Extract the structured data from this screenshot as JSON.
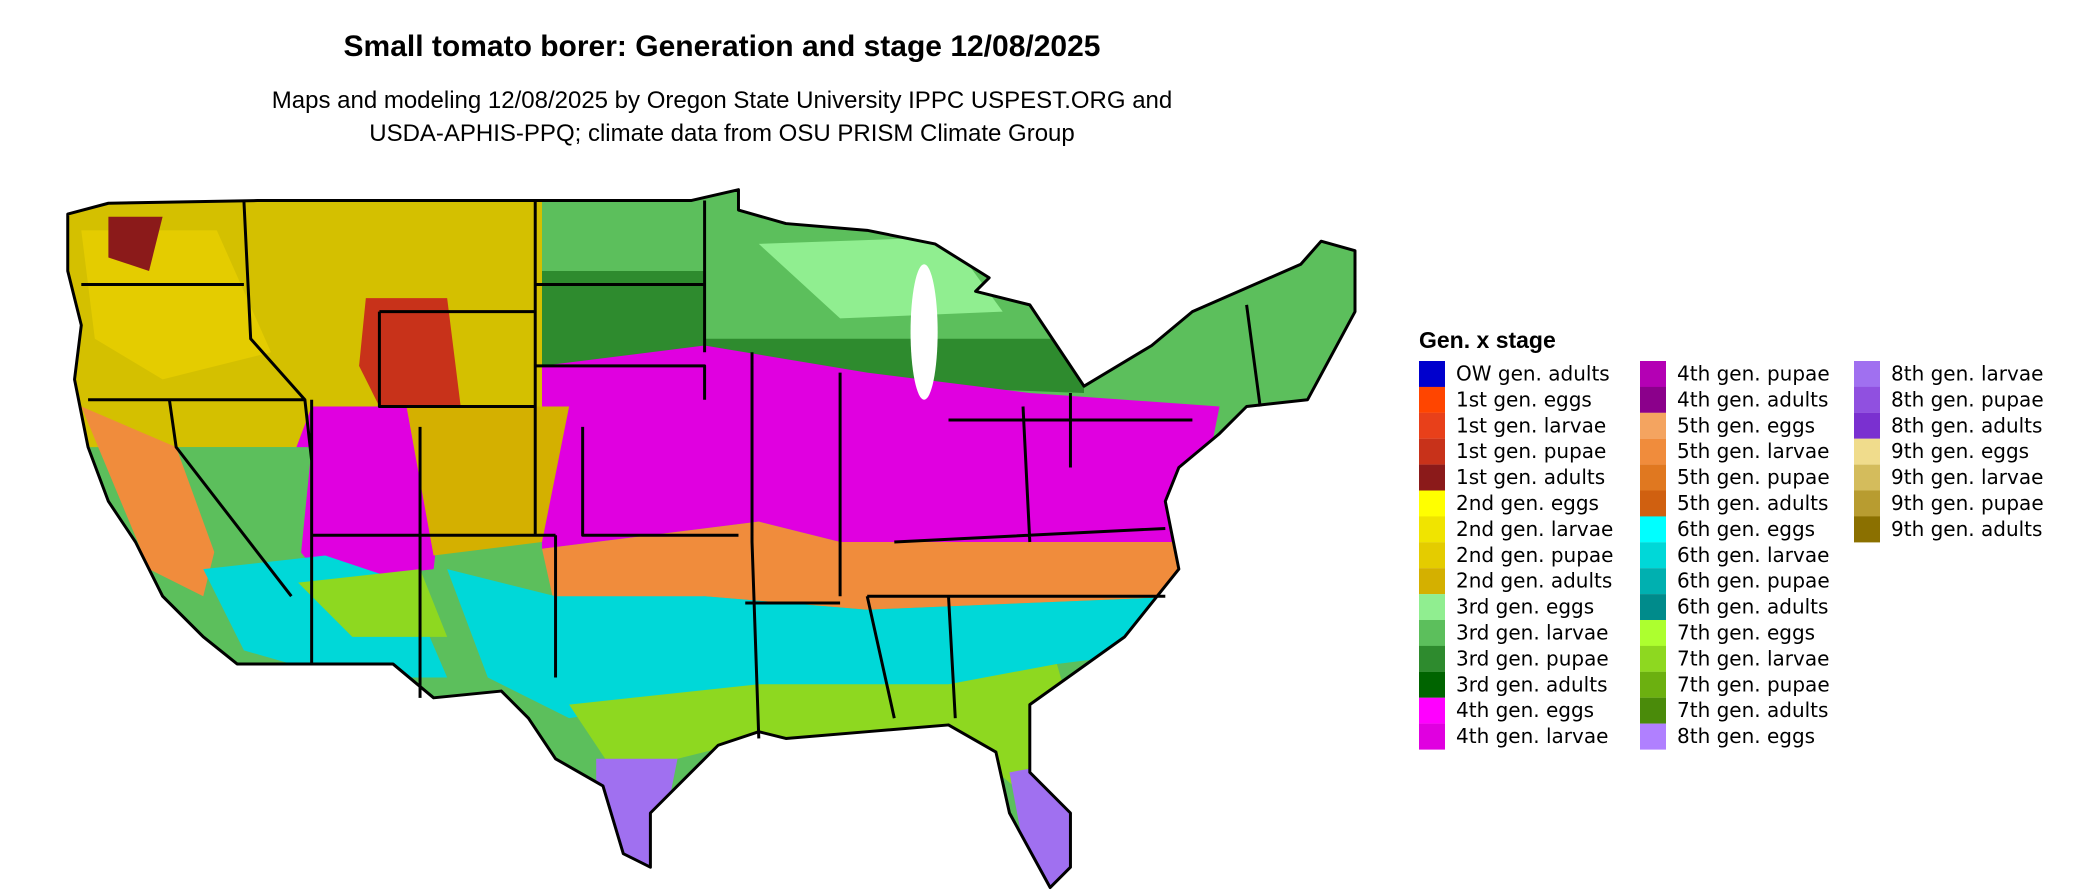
{
  "title": "Small tomato borer: Generation and stage 12/08/2025",
  "subtitle": [
    "Maps and modeling 12/08/2025 by Oregon State University IPPC USPEST.ORG and",
    "USDA-APHIS-PPQ; climate data from OSU PRISM Climate Group"
  ],
  "legend": {
    "title": "Gen. x stage",
    "items": [
      {
        "label": "OW gen. adults",
        "color": "#0000cd"
      },
      {
        "label": "1st gen. eggs",
        "color": "#ff4500"
      },
      {
        "label": "1st gen. larvae",
        "color": "#e8401a"
      },
      {
        "label": "1st gen. pupae",
        "color": "#c8321a"
      },
      {
        "label": "1st gen. adults",
        "color": "#8b1a1a"
      },
      {
        "label": "2nd gen. eggs",
        "color": "#ffff00"
      },
      {
        "label": "2nd gen. larvae",
        "color": "#f0e400"
      },
      {
        "label": "2nd gen. pupae",
        "color": "#e4cc00"
      },
      {
        "label": "2nd gen. adults",
        "color": "#d4b000"
      },
      {
        "label": "3rd gen. eggs",
        "color": "#90ee90"
      },
      {
        "label": "3rd gen. larvae",
        "color": "#5cbf5c"
      },
      {
        "label": "3rd gen. pupae",
        "color": "#2e8b2e"
      },
      {
        "label": "3rd gen. adults",
        "color": "#006400"
      },
      {
        "label": "4th gen. eggs",
        "color": "#ff00ff"
      },
      {
        "label": "4th gen. larvae",
        "color": "#e000e0"
      },
      {
        "label": "4th gen. pupae",
        "color": "#b400b4"
      },
      {
        "label": "4th gen. adults",
        "color": "#8b008b"
      },
      {
        "label": "5th gen. eggs",
        "color": "#f4a460"
      },
      {
        "label": "5th gen. larvae",
        "color": "#f08c3c"
      },
      {
        "label": "5th gen. pupae",
        "color": "#e07820"
      },
      {
        "label": "5th gen. adults",
        "color": "#d06010"
      },
      {
        "label": "6th gen. eggs",
        "color": "#00ffff"
      },
      {
        "label": "6th gen. larvae",
        "color": "#00d8d8"
      },
      {
        "label": "6th gen. pupae",
        "color": "#00b0b0"
      },
      {
        "label": "6th gen. adults",
        "color": "#008b8b"
      },
      {
        "label": "7th gen. eggs",
        "color": "#adff2f"
      },
      {
        "label": "7th gen. larvae",
        "color": "#8ed820"
      },
      {
        "label": "7th gen. pupae",
        "color": "#6cb010"
      },
      {
        "label": "7th gen. adults",
        "color": "#4a8b0a"
      },
      {
        "label": "8th gen. eggs",
        "color": "#b080ff"
      },
      {
        "label": "8th gen. larvae",
        "color": "#a070f0"
      },
      {
        "label": "8th gen. pupae",
        "color": "#9050e0"
      },
      {
        "label": "8th gen. adults",
        "color": "#7a30d0"
      },
      {
        "label": "9th gen. eggs",
        "color": "#f0dc8c"
      },
      {
        "label": "9th gen. larvae",
        "color": "#d4bc5c"
      },
      {
        "label": "9th gen. pupae",
        "color": "#b89c30"
      },
      {
        "label": "9th gen. adults",
        "color": "#8b7000"
      }
    ]
  }
}
